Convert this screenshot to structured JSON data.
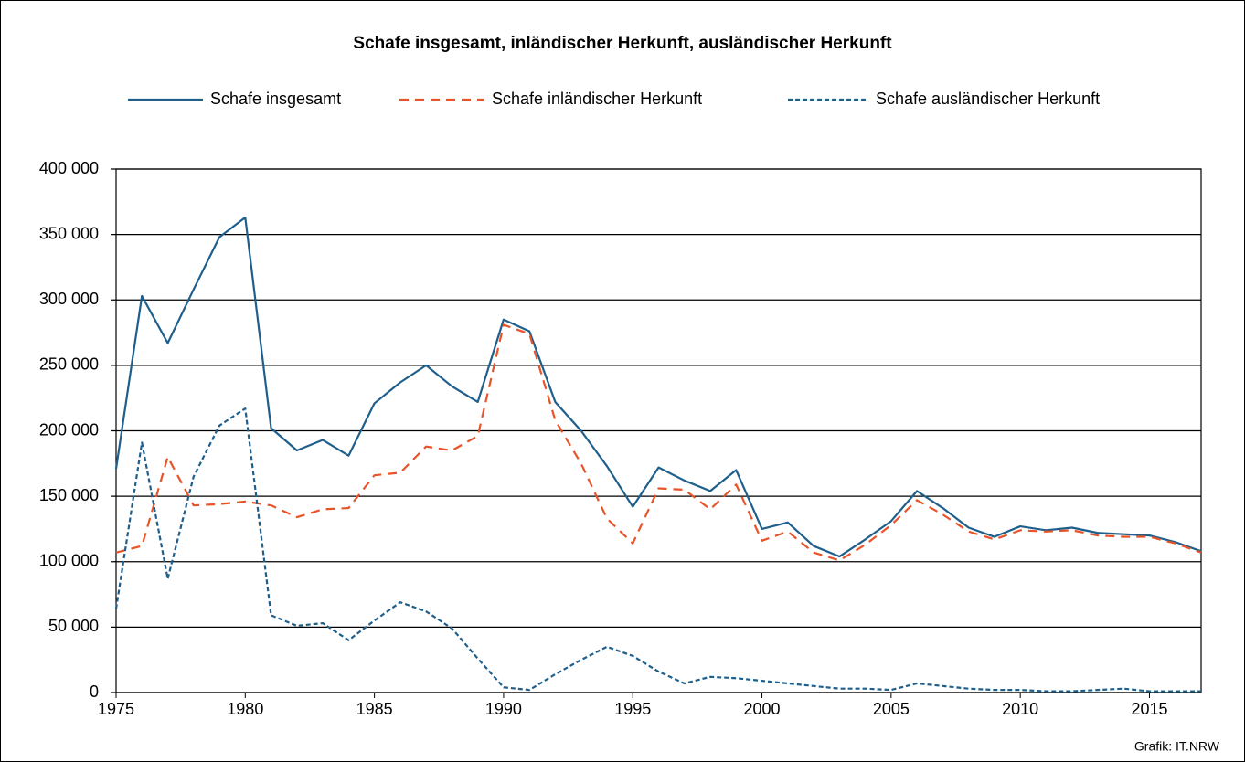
{
  "chart_data": {
    "type": "line",
    "title": "Schafe insgesamt, inländischer Herkunft, ausländischer Herkunft",
    "source": "Grafik: IT.NRW",
    "x": [
      1975,
      1976,
      1977,
      1978,
      1979,
      1980,
      1981,
      1982,
      1983,
      1984,
      1985,
      1986,
      1987,
      1988,
      1989,
      1990,
      1991,
      1992,
      1993,
      1994,
      1995,
      1996,
      1997,
      1998,
      1999,
      2000,
      2001,
      2002,
      2003,
      2004,
      2005,
      2006,
      2007,
      2008,
      2009,
      2010,
      2011,
      2012,
      2013,
      2014,
      2015,
      2016,
      2017
    ],
    "xlim": [
      1975,
      2017
    ],
    "xticks": [
      1975,
      1980,
      1985,
      1990,
      1995,
      2000,
      2005,
      2010,
      2015
    ],
    "ylim": [
      0,
      400000
    ],
    "yticks": [
      0,
      {
        "value": 50000,
        "label": "50 000"
      },
      {
        "value": 100000,
        "label": "100 000"
      },
      {
        "value": 150000,
        "label": "150 000"
      },
      {
        "value": 200000,
        "label": "200 000"
      },
      {
        "value": 250000,
        "label": "250 000"
      },
      {
        "value": 300000,
        "label": "300 000"
      },
      {
        "value": 350000,
        "label": "350 000"
      },
      {
        "value": 400000,
        "label": "400 000"
      }
    ],
    "grid": true,
    "legend": "top",
    "series": [
      {
        "name": "Schafe insgesamt",
        "color": "#1f5f8b",
        "line_style": "solid",
        "values": [
          171000,
          303000,
          267000,
          308000,
          348000,
          363000,
          202000,
          185000,
          193000,
          181000,
          221000,
          237000,
          250000,
          234000,
          222000,
          285000,
          276000,
          222000,
          200000,
          173000,
          142000,
          172000,
          162000,
          154000,
          170000,
          125000,
          130000,
          112000,
          104000,
          117000,
          131000,
          154000,
          141000,
          126000,
          119000,
          127000,
          124000,
          126000,
          122000,
          121000,
          120000,
          115000,
          108000
        ]
      },
      {
        "name": "Schafe inländischer Herkunft",
        "color": "#e8542a",
        "line_style": "dashed",
        "values": [
          107000,
          112000,
          180000,
          143000,
          144000,
          146000,
          143000,
          134000,
          140000,
          141000,
          166000,
          168000,
          188000,
          185000,
          196000,
          281000,
          274000,
          208000,
          175000,
          133000,
          114000,
          156000,
          155000,
          140000,
          159000,
          116000,
          123000,
          107000,
          101000,
          113000,
          128000,
          147000,
          136000,
          123000,
          117000,
          124000,
          123000,
          124000,
          120000,
          119000,
          119000,
          114000,
          107000
        ]
      },
      {
        "name": "Schafe ausländischer Herkunft",
        "color": "#1f5f8b",
        "line_style": "dotted",
        "values": [
          64000,
          191000,
          87000,
          165000,
          204000,
          217000,
          59000,
          51000,
          53000,
          40000,
          55000,
          69000,
          62000,
          49000,
          26000,
          4000,
          2000,
          14000,
          25000,
          35000,
          28000,
          16000,
          7000,
          12000,
          11000,
          9000,
          7000,
          5000,
          3000,
          3000,
          2000,
          7000,
          5000,
          3000,
          2000,
          2000,
          1000,
          1000,
          2000,
          3000,
          1000,
          1000,
          1000
        ]
      }
    ]
  }
}
